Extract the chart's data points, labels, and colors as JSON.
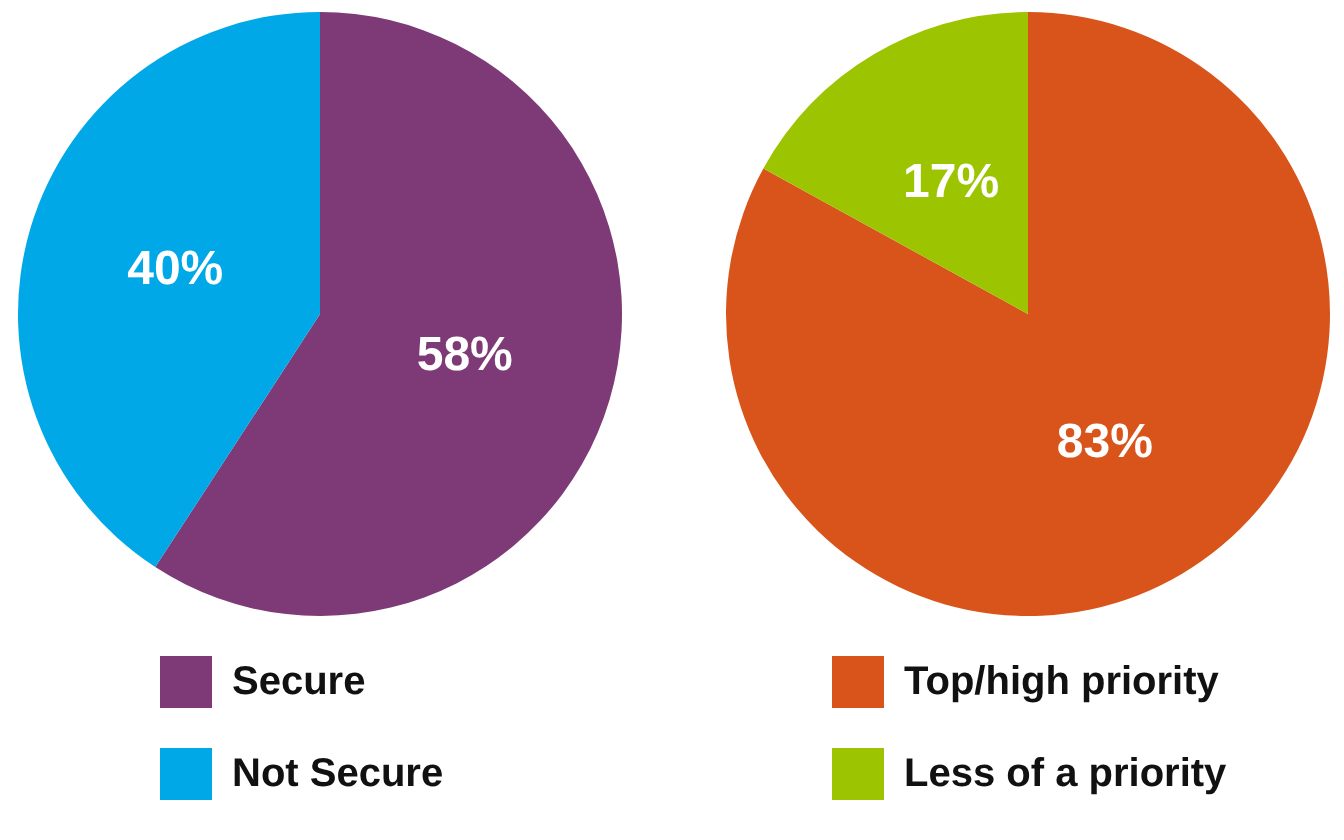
{
  "chart_data": [
    {
      "type": "pie",
      "categories": [
        "Secure",
        "Not Secure"
      ],
      "values": [
        58,
        40
      ],
      "colors": [
        "#7e3a76",
        "#00a8e8"
      ],
      "value_labels": [
        "58%",
        "40%"
      ],
      "legend": "bottom"
    },
    {
      "type": "pie",
      "categories": [
        "Top/high priority",
        "Less of a priority"
      ],
      "values": [
        83,
        17
      ],
      "colors": [
        "#d9541a",
        "#9dc400"
      ],
      "value_labels": [
        "83%",
        "17%"
      ],
      "legend": "bottom"
    }
  ]
}
